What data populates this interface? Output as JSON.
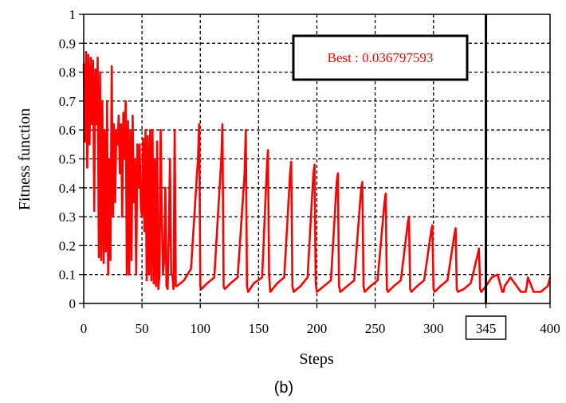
{
  "chart_data": {
    "type": "line",
    "caption": "(b)",
    "xlabel": "Steps",
    "ylabel": "Fitness function",
    "xlim": [
      0,
      400
    ],
    "ylim": [
      0,
      1
    ],
    "x_ticks": [
      "0",
      "50",
      "100",
      "150",
      "200",
      "250",
      "300",
      "345",
      "400"
    ],
    "y_ticks": [
      "0",
      "0.1",
      "0.2",
      "0.3",
      "0.4",
      "0.5",
      "0.6",
      "0.7",
      "0.8",
      "0.9",
      "1"
    ],
    "highlighted_tick": "345",
    "grid": true,
    "line_color": "#ff0000",
    "marker_line": {
      "x": 345,
      "color": "#000000"
    },
    "annotation": {
      "text": "Best : 0.036797593",
      "color": "#ff0000"
    },
    "series": [
      {
        "x": [
          0,
          1,
          2,
          3,
          4,
          5,
          6,
          7,
          8,
          9,
          10,
          11,
          12,
          13,
          14,
          15,
          16,
          17,
          18,
          19,
          20,
          21,
          22,
          23,
          24,
          25,
          26,
          27,
          28,
          29,
          30,
          31,
          32,
          33,
          34,
          35,
          36,
          37,
          38,
          39,
          40,
          41,
          42,
          43,
          44,
          45,
          46,
          47,
          48,
          49,
          50,
          51,
          52,
          53,
          54,
          55,
          56,
          57,
          58,
          59,
          60,
          61,
          62,
          63,
          64,
          65,
          66,
          67,
          68,
          69,
          70,
          71,
          72,
          73,
          74,
          75,
          76,
          77,
          78,
          79,
          80,
          86,
          92,
          98,
          99,
          100,
          101,
          106,
          112,
          118,
          119,
          120,
          121,
          126,
          132,
          138,
          139,
          140,
          141,
          146,
          153,
          157,
          158,
          159,
          160,
          166,
          172,
          177,
          178,
          179,
          180,
          186,
          192,
          197,
          198,
          199,
          200,
          206,
          212,
          217,
          218,
          219,
          220,
          226,
          232,
          238,
          239,
          240,
          241,
          246,
          252,
          258,
          259,
          260,
          261,
          266,
          272,
          278,
          279,
          280,
          281,
          286,
          292,
          298,
          299,
          300,
          301,
          306,
          312,
          318,
          319,
          320,
          321,
          326,
          332,
          338,
          339,
          340,
          341,
          345,
          350,
          355,
          359,
          360,
          361,
          366,
          375,
          379,
          380,
          381,
          386,
          392,
          398,
          400
        ],
        "values": [
          0.83,
          0.56,
          0.87,
          0.47,
          0.86,
          0.55,
          0.85,
          0.62,
          0.84,
          0.32,
          0.81,
          0.62,
          0.85,
          0.16,
          0.8,
          0.15,
          0.7,
          0.14,
          0.6,
          0.18,
          0.7,
          0.1,
          0.5,
          0.15,
          0.82,
          0.3,
          0.62,
          0.35,
          0.6,
          0.55,
          0.65,
          0.45,
          0.62,
          0.3,
          0.66,
          0.5,
          0.7,
          0.1,
          0.63,
          0.1,
          0.6,
          0.15,
          0.65,
          0.35,
          0.5,
          0.1,
          0.55,
          0.4,
          0.55,
          0.33,
          0.3,
          0.57,
          0.25,
          0.6,
          0.08,
          0.58,
          0.1,
          0.6,
          0.08,
          0.6,
          0.07,
          0.5,
          0.06,
          0.56,
          0.05,
          0.1,
          0.6,
          0.3,
          0.1,
          0.15,
          0.4,
          0.06,
          0.05,
          0.25,
          0.5,
          0.1,
          0.1,
          0.05,
          0.6,
          0.06,
          0.06,
          0.08,
          0.12,
          0.5,
          0.62,
          0.06,
          0.05,
          0.07,
          0.09,
          0.5,
          0.62,
          0.06,
          0.05,
          0.07,
          0.09,
          0.45,
          0.6,
          0.06,
          0.04,
          0.07,
          0.09,
          0.46,
          0.53,
          0.1,
          0.04,
          0.07,
          0.09,
          0.45,
          0.49,
          0.06,
          0.04,
          0.06,
          0.09,
          0.45,
          0.48,
          0.07,
          0.04,
          0.06,
          0.08,
          0.42,
          0.45,
          0.06,
          0.04,
          0.06,
          0.08,
          0.4,
          0.42,
          0.06,
          0.04,
          0.06,
          0.08,
          0.35,
          0.38,
          0.05,
          0.04,
          0.06,
          0.08,
          0.28,
          0.3,
          0.05,
          0.04,
          0.06,
          0.08,
          0.25,
          0.27,
          0.05,
          0.04,
          0.06,
          0.08,
          0.24,
          0.26,
          0.05,
          0.04,
          0.05,
          0.07,
          0.17,
          0.19,
          0.05,
          0.04,
          0.06,
          0.09,
          0.1,
          0.04,
          0.04,
          0.06,
          0.09,
          0.04,
          0.04,
          0.06,
          0.09,
          0.04,
          0.04,
          0.06,
          0.09
        ]
      }
    ]
  }
}
